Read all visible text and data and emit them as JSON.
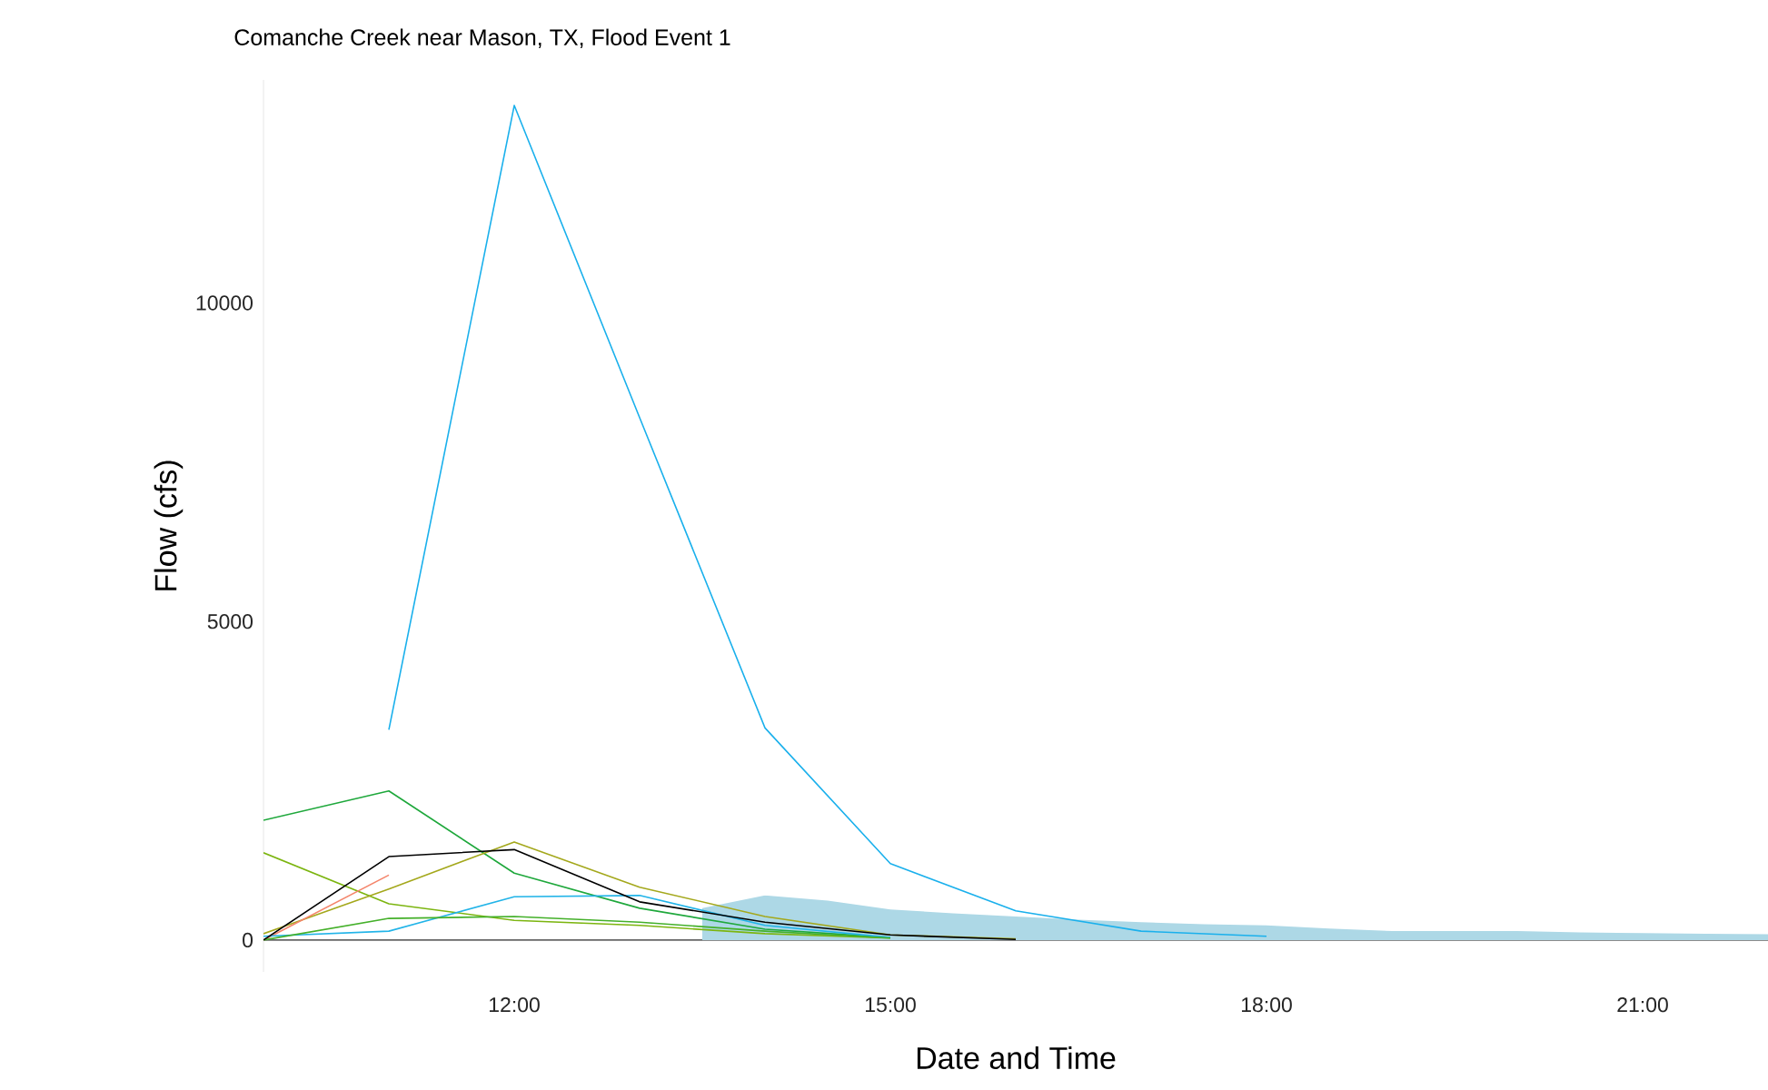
{
  "chart_data": {
    "type": "line",
    "title": "Comanche Creek near Mason, TX, Flood Event 1",
    "xlabel": "Date and Time",
    "ylabel": "Flow (cfs)",
    "xlim": [
      10,
      22
    ],
    "ylim": [
      -500,
      13500
    ],
    "xticks": [
      {
        "value": 12,
        "label": "12:00"
      },
      {
        "value": 15,
        "label": "15:00"
      },
      {
        "value": 18,
        "label": "18:00"
      },
      {
        "value": 21,
        "label": "21:00"
      }
    ],
    "yticks": [
      0,
      5000,
      10000
    ],
    "series": [
      {
        "type": "area",
        "color": "#add8e6",
        "x": [
          13.5,
          14,
          14.5,
          15,
          15.5,
          16,
          16.5,
          17,
          17.5,
          18,
          18.5,
          19,
          19.5,
          20,
          20.5,
          21,
          21.5,
          22
        ],
        "values": [
          500,
          700,
          620,
          480,
          420,
          370,
          320,
          280,
          250,
          230,
          180,
          140,
          140,
          140,
          120,
          110,
          100,
          90
        ]
      },
      {
        "color": "#1ab0ec",
        "x": [
          11,
          12,
          13,
          14,
          15,
          16,
          17,
          18
        ],
        "values": [
          3300,
          13100,
          8200,
          3330,
          1200,
          460,
          140,
          60
        ]
      },
      {
        "color": "#1fa83c",
        "x": [
          10,
          11,
          12,
          13,
          14,
          15
        ],
        "values": [
          1880,
          2340,
          1050,
          500,
          170,
          40
        ]
      },
      {
        "color": "#7cb510",
        "x": [
          10,
          11,
          12,
          13,
          14,
          15
        ],
        "values": [
          1370,
          570,
          310,
          230,
          100,
          30
        ]
      },
      {
        "color": "#a4a81c",
        "x": [
          10,
          11,
          12,
          13,
          14,
          15,
          16
        ],
        "values": [
          100,
          800,
          1540,
          830,
          370,
          80,
          20
        ]
      },
      {
        "color": "#f4846a",
        "x": [
          10,
          11
        ],
        "values": [
          0,
          1020
        ]
      },
      {
        "color": "#22b4e8",
        "x": [
          10,
          11,
          12,
          13,
          14,
          15
        ],
        "values": [
          60,
          140,
          680,
          700,
          230,
          40
        ]
      },
      {
        "color": "#44b02a",
        "x": [
          10,
          11,
          12,
          13,
          14,
          15
        ],
        "values": [
          0,
          340,
          370,
          280,
          140,
          30
        ]
      },
      {
        "color": "#000000",
        "x": [
          10,
          11,
          12,
          13,
          14,
          15,
          16
        ],
        "values": [
          0,
          1310,
          1420,
          600,
          280,
          80,
          10
        ]
      }
    ]
  }
}
